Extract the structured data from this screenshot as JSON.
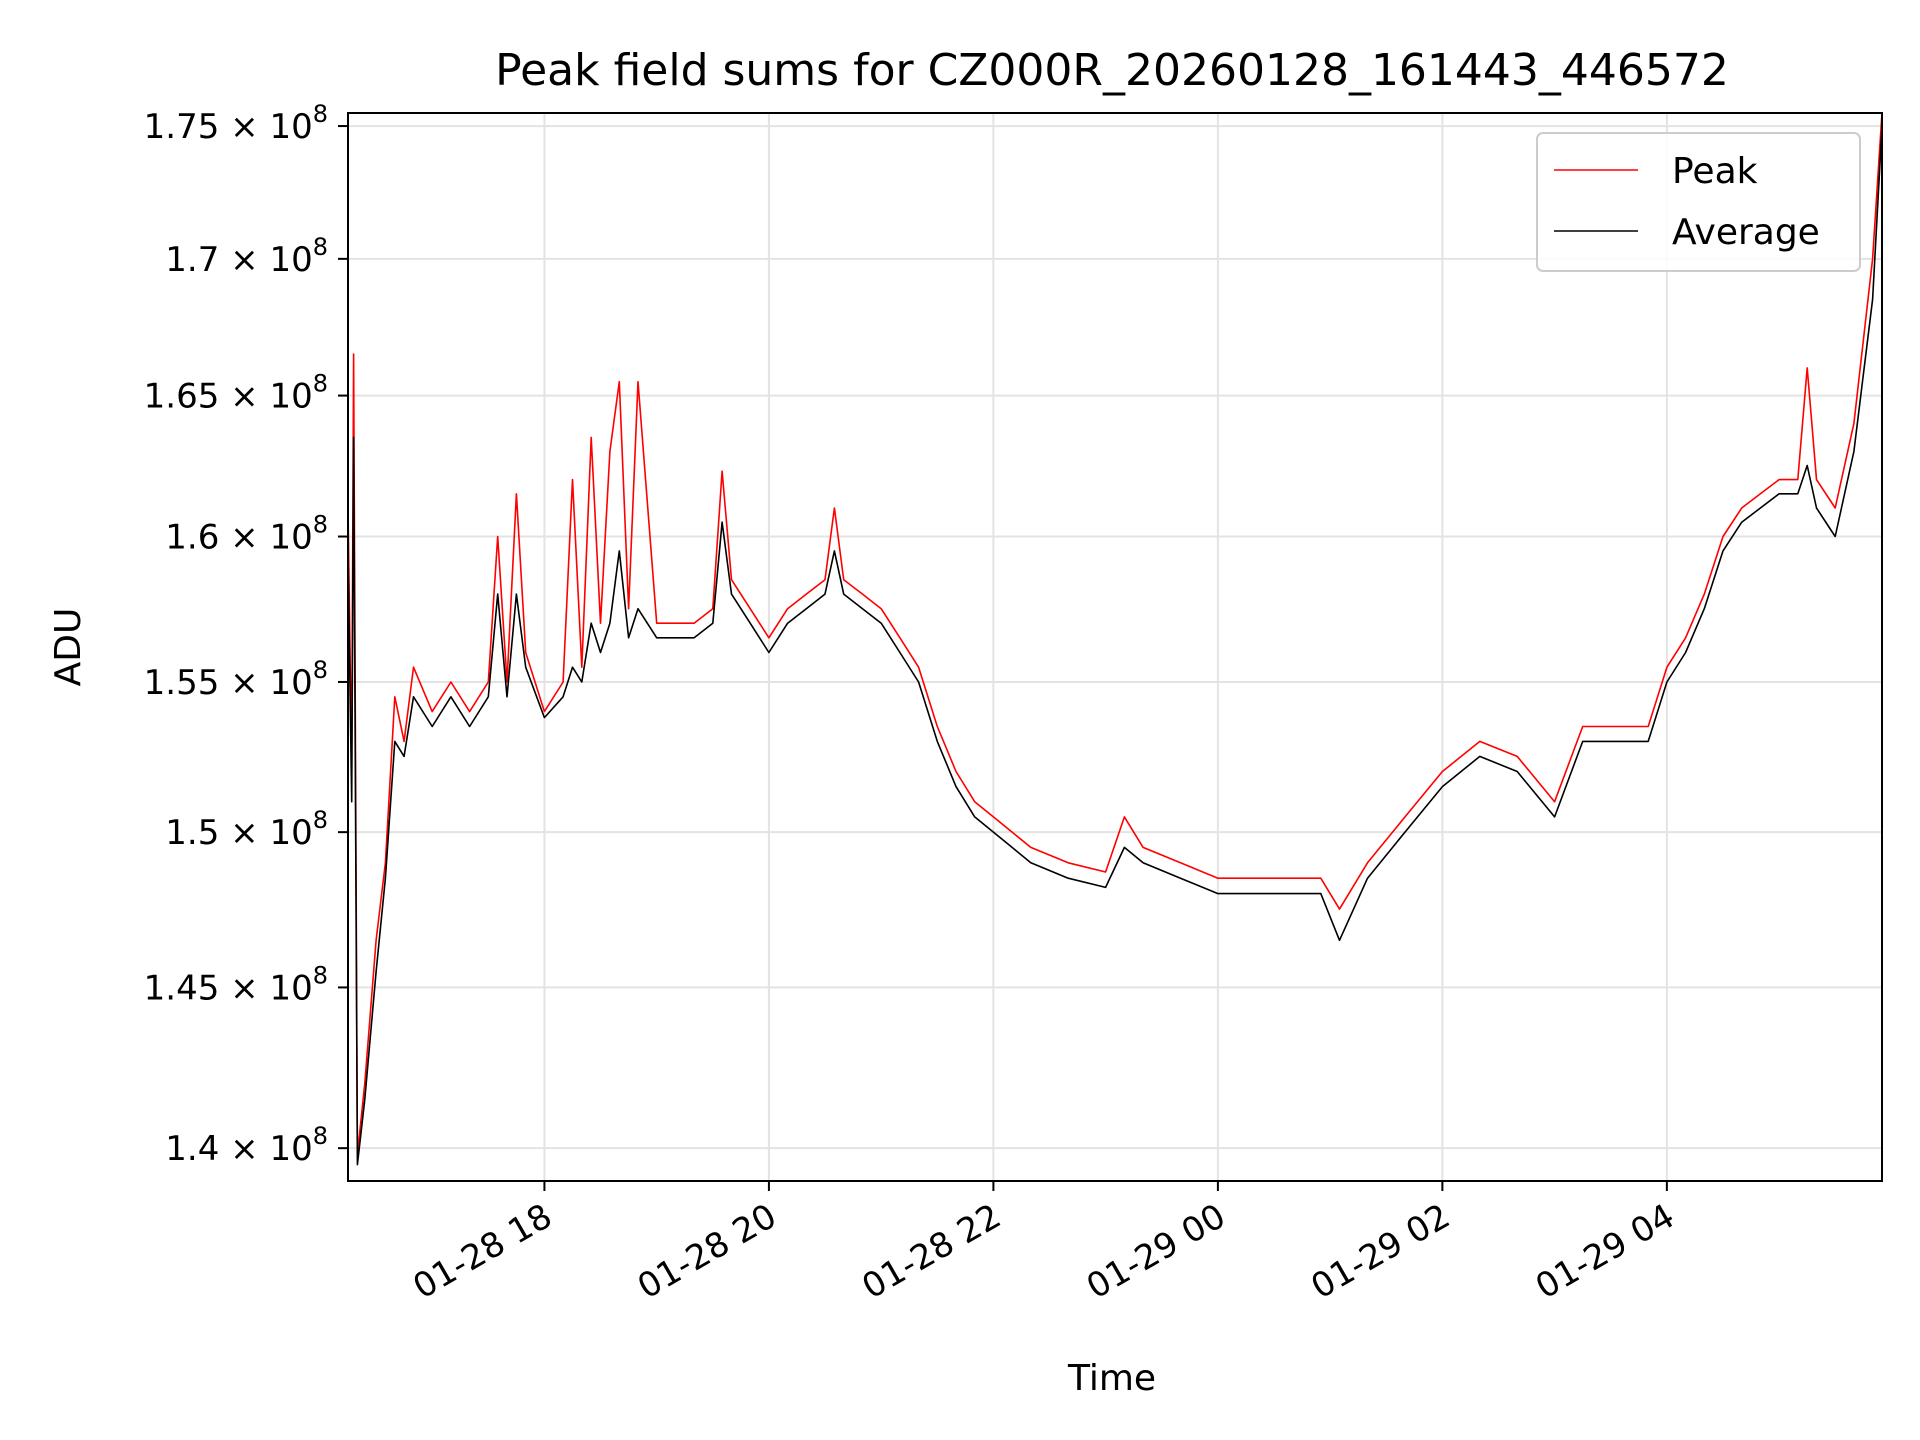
{
  "chart_data": {
    "type": "line",
    "title": "Peak field sums for CZ000R_20260128_161443_446572",
    "xlabel": "Time",
    "ylabel": "ADU",
    "x_range": [
      "2026-01-28 16:15",
      "2026-01-29 05:55"
    ],
    "ylim": [
      139000000,
      175500000
    ],
    "y_scale": "log",
    "grid": true,
    "legend_position": "top-right",
    "x_ticks": [
      {
        "time": "2026-01-28 18:00",
        "label": "01-28 18"
      },
      {
        "time": "2026-01-28 20:00",
        "label": "01-28 20"
      },
      {
        "time": "2026-01-28 22:00",
        "label": "01-28 22"
      },
      {
        "time": "2026-01-29 00:00",
        "label": "01-29 00"
      },
      {
        "time": "2026-01-29 02:00",
        "label": "01-29 02"
      },
      {
        "time": "2026-01-29 04:00",
        "label": "01-29 04"
      }
    ],
    "y_ticks": [
      {
        "value": 140000000,
        "mantissa": "1.4"
      },
      {
        "value": 145000000,
        "mantissa": "1.45"
      },
      {
        "value": 150000000,
        "mantissa": "1.5"
      },
      {
        "value": 155000000,
        "mantissa": "1.55"
      },
      {
        "value": 160000000,
        "mantissa": "1.6"
      },
      {
        "value": 165000000,
        "mantissa": "1.65"
      },
      {
        "value": 170000000,
        "mantissa": "1.7"
      },
      {
        "value": 175000000,
        "mantissa": "1.75"
      }
    ],
    "y_tick_suffix": "× 10",
    "y_tick_exponent": "8",
    "series": [
      {
        "name": "Peak",
        "color": "#ff0000",
        "points": [
          [
            "2026-01-28 16:15",
            161000000
          ],
          [
            "2026-01-28 16:17",
            152000000
          ],
          [
            "2026-01-28 16:18",
            166500000
          ],
          [
            "2026-01-28 16:20",
            139800000
          ],
          [
            "2026-01-28 16:24",
            142000000
          ],
          [
            "2026-01-28 16:30",
            146500000
          ],
          [
            "2026-01-28 16:35",
            149000000
          ],
          [
            "2026-01-28 16:40",
            154500000
          ],
          [
            "2026-01-28 16:45",
            153000000
          ],
          [
            "2026-01-28 16:50",
            155500000
          ],
          [
            "2026-01-28 17:00",
            154000000
          ],
          [
            "2026-01-28 17:10",
            155000000
          ],
          [
            "2026-01-28 17:20",
            154000000
          ],
          [
            "2026-01-28 17:30",
            155000000
          ],
          [
            "2026-01-28 17:35",
            160000000
          ],
          [
            "2026-01-28 17:40",
            155000000
          ],
          [
            "2026-01-28 17:45",
            161500000
          ],
          [
            "2026-01-28 17:50",
            156000000
          ],
          [
            "2026-01-28 18:00",
            154000000
          ],
          [
            "2026-01-28 18:10",
            155000000
          ],
          [
            "2026-01-28 18:15",
            162000000
          ],
          [
            "2026-01-28 18:20",
            155500000
          ],
          [
            "2026-01-28 18:25",
            163500000
          ],
          [
            "2026-01-28 18:30",
            157000000
          ],
          [
            "2026-01-28 18:35",
            163000000
          ],
          [
            "2026-01-28 18:40",
            165500000
          ],
          [
            "2026-01-28 18:45",
            157500000
          ],
          [
            "2026-01-28 18:50",
            165500000
          ],
          [
            "2026-01-28 19:00",
            157000000
          ],
          [
            "2026-01-28 19:10",
            157000000
          ],
          [
            "2026-01-28 19:20",
            157000000
          ],
          [
            "2026-01-28 19:30",
            157500000
          ],
          [
            "2026-01-28 19:35",
            162300000
          ],
          [
            "2026-01-28 19:40",
            158500000
          ],
          [
            "2026-01-28 19:50",
            157500000
          ],
          [
            "2026-01-28 20:00",
            156500000
          ],
          [
            "2026-01-28 20:10",
            157500000
          ],
          [
            "2026-01-28 20:20",
            158000000
          ],
          [
            "2026-01-28 20:30",
            158500000
          ],
          [
            "2026-01-28 20:35",
            161000000
          ],
          [
            "2026-01-28 20:40",
            158500000
          ],
          [
            "2026-01-28 20:50",
            158000000
          ],
          [
            "2026-01-28 21:00",
            157500000
          ],
          [
            "2026-01-28 21:10",
            156500000
          ],
          [
            "2026-01-28 21:20",
            155500000
          ],
          [
            "2026-01-28 21:30",
            153500000
          ],
          [
            "2026-01-28 21:40",
            152000000
          ],
          [
            "2026-01-28 21:50",
            151000000
          ],
          [
            "2026-01-28 22:00",
            150500000
          ],
          [
            "2026-01-28 22:10",
            150000000
          ],
          [
            "2026-01-28 22:20",
            149500000
          ],
          [
            "2026-01-28 22:40",
            149000000
          ],
          [
            "2026-01-28 23:00",
            148700000
          ],
          [
            "2026-01-28 23:10",
            150500000
          ],
          [
            "2026-01-28 23:20",
            149500000
          ],
          [
            "2026-01-28 23:40",
            149000000
          ],
          [
            "2026-01-29 00:00",
            148500000
          ],
          [
            "2026-01-29 00:20",
            148500000
          ],
          [
            "2026-01-29 00:40",
            148500000
          ],
          [
            "2026-01-29 00:55",
            148500000
          ],
          [
            "2026-01-29 01:05",
            147500000
          ],
          [
            "2026-01-29 01:20",
            149000000
          ],
          [
            "2026-01-29 01:40",
            150500000
          ],
          [
            "2026-01-29 02:00",
            152000000
          ],
          [
            "2026-01-29 02:20",
            153000000
          ],
          [
            "2026-01-29 02:40",
            152500000
          ],
          [
            "2026-01-29 03:00",
            151000000
          ],
          [
            "2026-01-29 03:15",
            153500000
          ],
          [
            "2026-01-29 03:30",
            153500000
          ],
          [
            "2026-01-29 03:50",
            153500000
          ],
          [
            "2026-01-29 04:00",
            155500000
          ],
          [
            "2026-01-29 04:10",
            156500000
          ],
          [
            "2026-01-29 04:20",
            158000000
          ],
          [
            "2026-01-29 04:30",
            160000000
          ],
          [
            "2026-01-29 04:40",
            161000000
          ],
          [
            "2026-01-29 04:50",
            161500000
          ],
          [
            "2026-01-29 05:00",
            162000000
          ],
          [
            "2026-01-29 05:10",
            162000000
          ],
          [
            "2026-01-29 05:15",
            166000000
          ],
          [
            "2026-01-29 05:20",
            162000000
          ],
          [
            "2026-01-29 05:30",
            161000000
          ],
          [
            "2026-01-29 05:40",
            164000000
          ],
          [
            "2026-01-29 05:50",
            170000000
          ],
          [
            "2026-01-29 05:55",
            175500000
          ]
        ]
      },
      {
        "name": "Average",
        "color": "#000000",
        "points": [
          [
            "2026-01-28 16:15",
            159500000
          ],
          [
            "2026-01-28 16:17",
            151000000
          ],
          [
            "2026-01-28 16:18",
            163500000
          ],
          [
            "2026-01-28 16:20",
            139500000
          ],
          [
            "2026-01-28 16:24",
            141500000
          ],
          [
            "2026-01-28 16:30",
            145500000
          ],
          [
            "2026-01-28 16:35",
            148500000
          ],
          [
            "2026-01-28 16:40",
            153000000
          ],
          [
            "2026-01-28 16:45",
            152500000
          ],
          [
            "2026-01-28 16:50",
            154500000
          ],
          [
            "2026-01-28 17:00",
            153500000
          ],
          [
            "2026-01-28 17:10",
            154500000
          ],
          [
            "2026-01-28 17:20",
            153500000
          ],
          [
            "2026-01-28 17:30",
            154500000
          ],
          [
            "2026-01-28 17:35",
            158000000
          ],
          [
            "2026-01-28 17:40",
            154500000
          ],
          [
            "2026-01-28 17:45",
            158000000
          ],
          [
            "2026-01-28 17:50",
            155500000
          ],
          [
            "2026-01-28 18:00",
            153800000
          ],
          [
            "2026-01-28 18:10",
            154500000
          ],
          [
            "2026-01-28 18:15",
            155500000
          ],
          [
            "2026-01-28 18:20",
            155000000
          ],
          [
            "2026-01-28 18:25",
            157000000
          ],
          [
            "2026-01-28 18:30",
            156000000
          ],
          [
            "2026-01-28 18:35",
            157000000
          ],
          [
            "2026-01-28 18:40",
            159500000
          ],
          [
            "2026-01-28 18:45",
            156500000
          ],
          [
            "2026-01-28 18:50",
            157500000
          ],
          [
            "2026-01-28 19:00",
            156500000
          ],
          [
            "2026-01-28 19:10",
            156500000
          ],
          [
            "2026-01-28 19:20",
            156500000
          ],
          [
            "2026-01-28 19:30",
            157000000
          ],
          [
            "2026-01-28 19:35",
            160500000
          ],
          [
            "2026-01-28 19:40",
            158000000
          ],
          [
            "2026-01-28 19:50",
            157000000
          ],
          [
            "2026-01-28 20:00",
            156000000
          ],
          [
            "2026-01-28 20:10",
            157000000
          ],
          [
            "2026-01-28 20:20",
            157500000
          ],
          [
            "2026-01-28 20:30",
            158000000
          ],
          [
            "2026-01-28 20:35",
            159500000
          ],
          [
            "2026-01-28 20:40",
            158000000
          ],
          [
            "2026-01-28 20:50",
            157500000
          ],
          [
            "2026-01-28 21:00",
            157000000
          ],
          [
            "2026-01-28 21:10",
            156000000
          ],
          [
            "2026-01-28 21:20",
            155000000
          ],
          [
            "2026-01-28 21:30",
            153000000
          ],
          [
            "2026-01-28 21:40",
            151500000
          ],
          [
            "2026-01-28 21:50",
            150500000
          ],
          [
            "2026-01-28 22:00",
            150000000
          ],
          [
            "2026-01-28 22:10",
            149500000
          ],
          [
            "2026-01-28 22:20",
            149000000
          ],
          [
            "2026-01-28 22:40",
            148500000
          ],
          [
            "2026-01-28 23:00",
            148200000
          ],
          [
            "2026-01-28 23:10",
            149500000
          ],
          [
            "2026-01-28 23:20",
            149000000
          ],
          [
            "2026-01-28 23:40",
            148500000
          ],
          [
            "2026-01-29 00:00",
            148000000
          ],
          [
            "2026-01-29 00:20",
            148000000
          ],
          [
            "2026-01-29 00:40",
            148000000
          ],
          [
            "2026-01-29 00:55",
            148000000
          ],
          [
            "2026-01-29 01:05",
            146500000
          ],
          [
            "2026-01-29 01:20",
            148500000
          ],
          [
            "2026-01-29 01:40",
            150000000
          ],
          [
            "2026-01-29 02:00",
            151500000
          ],
          [
            "2026-01-29 02:20",
            152500000
          ],
          [
            "2026-01-29 02:40",
            152000000
          ],
          [
            "2026-01-29 03:00",
            150500000
          ],
          [
            "2026-01-29 03:15",
            153000000
          ],
          [
            "2026-01-29 03:30",
            153000000
          ],
          [
            "2026-01-29 03:50",
            153000000
          ],
          [
            "2026-01-29 04:00",
            155000000
          ],
          [
            "2026-01-29 04:10",
            156000000
          ],
          [
            "2026-01-29 04:20",
            157500000
          ],
          [
            "2026-01-29 04:30",
            159500000
          ],
          [
            "2026-01-29 04:40",
            160500000
          ],
          [
            "2026-01-29 04:50",
            161000000
          ],
          [
            "2026-01-29 05:00",
            161500000
          ],
          [
            "2026-01-29 05:10",
            161500000
          ],
          [
            "2026-01-29 05:15",
            162500000
          ],
          [
            "2026-01-29 05:20",
            161000000
          ],
          [
            "2026-01-29 05:30",
            160000000
          ],
          [
            "2026-01-29 05:40",
            163000000
          ],
          [
            "2026-01-29 05:50",
            168500000
          ],
          [
            "2026-01-29 05:55",
            175000000
          ]
        ]
      }
    ]
  }
}
